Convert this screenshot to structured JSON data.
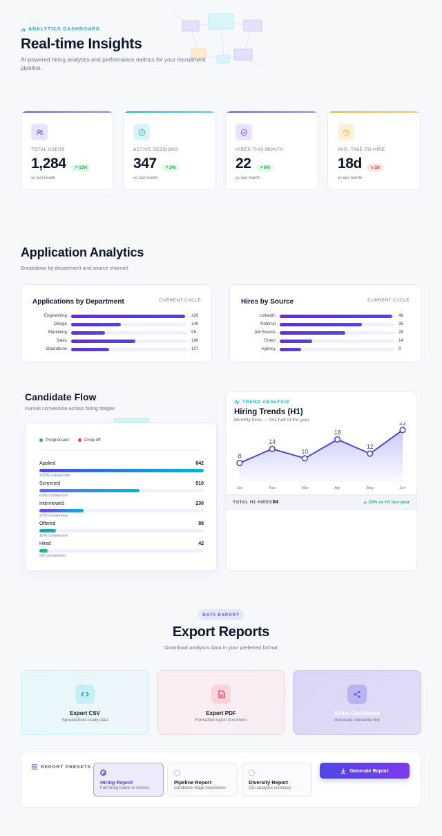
{
  "hero": {
    "eyebrow": "ANALYTICS DASHBOARD",
    "title": "Real-time Insights",
    "subtitle": "AI-powered hiring analytics and performance metrics for your recruitment pipeline."
  },
  "stats": [
    {
      "label": "TOTAL USERS",
      "value": "1,284",
      "change": "12%",
      "trend": "up",
      "foot": "vs last month",
      "color": "#6d5bd0",
      "icon": "users-icon"
    },
    {
      "label": "ACTIVE SESSIONS",
      "value": "347",
      "change": "3%",
      "trend": "up",
      "foot": "vs last month",
      "color": "#14b8c8",
      "icon": "clock-icon"
    },
    {
      "label": "HIRES THIS MONTH",
      "value": "22",
      "change": "8%",
      "trend": "up",
      "foot": "vs last month",
      "color": "#7c4ddb",
      "icon": "check-circle-icon"
    },
    {
      "label": "AVG. TIME-TO-HIRE",
      "value": "18d",
      "change": "2d",
      "trend": "down",
      "foot": "vs last month",
      "color": "#f0b429",
      "icon": "timer-icon"
    }
  ],
  "analytics": {
    "title": "Application Analytics",
    "subtitle": "Breakdown by department and source channel",
    "by_department": {
      "title": "Applications by Department",
      "cycle": "CURRENT CYCLE",
      "rows": [
        {
          "label": "Engineering",
          "value": 320
        },
        {
          "label": "Design",
          "value": 140
        },
        {
          "label": "Marketing",
          "value": 95
        },
        {
          "label": "Sales",
          "value": 180
        },
        {
          "label": "Operations",
          "value": 107
        }
      ]
    },
    "by_source": {
      "title": "Hires by Source",
      "cycle": "CURRENT CYCLE",
      "rows": [
        {
          "label": "LinkedIn",
          "value": 48
        },
        {
          "label": "Referral",
          "value": 35
        },
        {
          "label": "Job Boards",
          "value": 28
        },
        {
          "label": "Direct",
          "value": 14
        },
        {
          "label": "Agency",
          "value": 9
        }
      ]
    }
  },
  "funnel": {
    "title": "Candidate Flow",
    "subtitle": "Funnel conversion across hiring stages",
    "legend_progressed": "Progressed",
    "legend_dropoff": "Drop-off",
    "stages": [
      {
        "name": "Applied",
        "count": "842",
        "conversion": "100% conversion",
        "fraction": 1.0
      },
      {
        "name": "Screened",
        "count": "510",
        "conversion": "61% conversion",
        "fraction": 0.61
      },
      {
        "name": "Interviewed",
        "count": "230",
        "conversion": "27% conversion",
        "fraction": 0.27
      },
      {
        "name": "Offered",
        "count": "88",
        "conversion": "10% conversion",
        "fraction": 0.1
      },
      {
        "name": "Hired",
        "count": "42",
        "conversion": "5% conversion",
        "fraction": 0.05
      }
    ]
  },
  "trend": {
    "eyebrow": "TREND ANALYSIS",
    "title": "Hiring Trends (H1)",
    "subtitle": "Monthly hires — first half of the year",
    "total_label": "TOTAL H1 HIRES:",
    "total_value": "84",
    "change": "▲ 22% vs H1 last year"
  },
  "chart_data": {
    "type": "area",
    "title": "Hiring Trends (H1)",
    "categories": [
      "Jan",
      "Feb",
      "Mar",
      "Apr",
      "May",
      "Jun"
    ],
    "values": [
      8,
      14,
      10,
      18,
      12,
      22
    ],
    "ylim": [
      0,
      24
    ],
    "grid": false,
    "color": "#4f46c8"
  },
  "export": {
    "pill": "DATA EXPORT",
    "title": "Export Reports",
    "subtitle": "Download analytics data in your preferred format",
    "cards": [
      {
        "title": "Export CSV",
        "subtitle": "Spreadsheet-ready data",
        "icon": "code-icon"
      },
      {
        "title": "Export PDF",
        "subtitle": "Formatted report document",
        "icon": "file-icon"
      },
      {
        "title": "Share Dashboard",
        "subtitle": "Generate shareable link",
        "icon": "share-icon"
      }
    ]
  },
  "presets": {
    "label": "REPORT PRESETS",
    "items": [
      {
        "title": "Hiring Report",
        "subtitle": "Full hiring funnel & metrics",
        "selected": true
      },
      {
        "title": "Pipeline Report",
        "subtitle": "Candidate stage breakdown",
        "selected": false
      },
      {
        "title": "Diversity Report",
        "subtitle": "DEI analytics summary",
        "selected": false
      }
    ],
    "generate_label": "Generate Report"
  }
}
